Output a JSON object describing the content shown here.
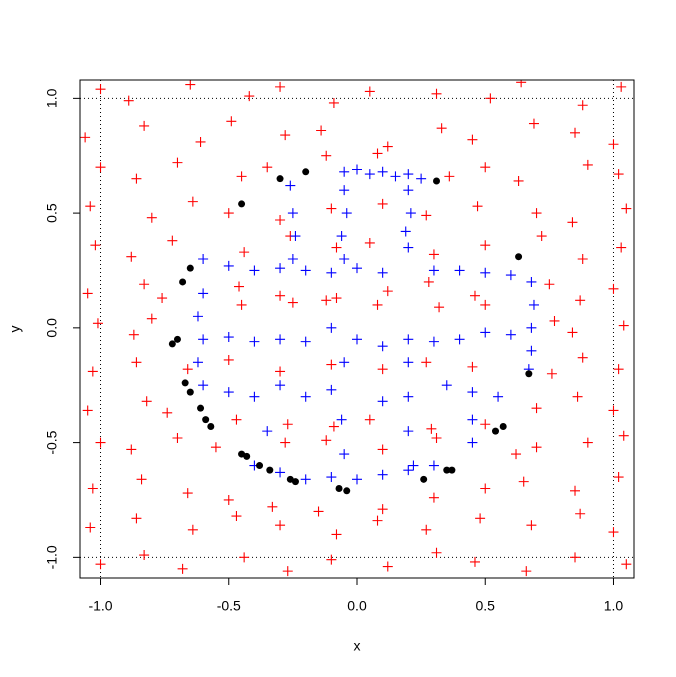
{
  "chart_data": {
    "type": "scatter",
    "x_label": "x",
    "y_label": "y",
    "xlim": [
      -1.08,
      1.08
    ],
    "ylim": [
      -1.09,
      1.08
    ],
    "xticks": [
      {
        "value": -1,
        "label": "-1.0"
      },
      -0.5,
      {
        "value": 0,
        "label": "0.0"
      },
      0.5,
      {
        "value": 1,
        "label": "1.0"
      }
    ],
    "yticks": [
      {
        "value": -1,
        "label": "-1.0"
      },
      -0.5,
      {
        "value": 0,
        "label": "0.0"
      },
      0.5,
      {
        "value": 1,
        "label": "1.0"
      }
    ],
    "hlines": [
      -1,
      1
    ],
    "vlines": [
      -1,
      1
    ],
    "series": [
      {
        "color": "#ff0000",
        "marker": "plus",
        "x": [
          -1.0,
          -0.89,
          -0.65,
          -0.42,
          -0.3,
          -0.09,
          0.05,
          0.31,
          0.52,
          0.64,
          0.88,
          1.03,
          -1.06,
          -0.83,
          -0.61,
          -0.49,
          -0.28,
          -0.14,
          0.12,
          0.33,
          0.45,
          0.69,
          0.85,
          1.0,
          -1.0,
          -0.86,
          -0.7,
          -0.45,
          -0.35,
          -0.12,
          0.08,
          0.36,
          0.5,
          0.63,
          0.9,
          1.02,
          -1.04,
          -0.8,
          -0.64,
          -0.5,
          -0.3,
          -0.1,
          0.1,
          0.27,
          0.47,
          0.7,
          0.84,
          1.05,
          -1.02,
          -0.88,
          -0.72,
          -0.44,
          -0.26,
          -0.08,
          0.05,
          0.3,
          0.5,
          0.72,
          0.88,
          1.03,
          -1.05,
          -0.83,
          -0.76,
          -0.46,
          -0.3,
          -0.12,
          0.12,
          0.28,
          0.46,
          0.75,
          0.87,
          1.0,
          -1.01,
          -0.87,
          -0.8,
          -0.45,
          -0.25,
          -0.08,
          0.08,
          0.32,
          0.5,
          0.77,
          0.84,
          1.04,
          -1.03,
          -0.86,
          -0.66,
          -0.5,
          -0.3,
          -0.1,
          0.1,
          0.27,
          0.45,
          0.76,
          0.88,
          1.02,
          -1.05,
          -0.82,
          -0.74,
          -0.47,
          -0.27,
          -0.09,
          0.05,
          0.29,
          0.5,
          0.7,
          0.86,
          1.0,
          -1.0,
          -0.88,
          -0.7,
          -0.55,
          -0.28,
          -0.12,
          0.1,
          0.31,
          0.62,
          0.7,
          0.9,
          1.04,
          -1.03,
          -0.84,
          -0.66,
          -0.5,
          -0.33,
          -0.15,
          0.1,
          0.3,
          0.5,
          0.65,
          0.85,
          1.02,
          -1.04,
          -0.86,
          -0.64,
          -0.47,
          -0.3,
          -0.08,
          0.08,
          0.27,
          0.48,
          0.68,
          0.87,
          1.0,
          -1.0,
          -0.83,
          -0.68,
          -0.44,
          -0.27,
          -0.1,
          0.12,
          0.31,
          0.46,
          0.66,
          0.85,
          1.05
        ],
        "y": [
          1.04,
          0.99,
          1.06,
          1.01,
          1.05,
          0.98,
          1.03,
          1.02,
          1.0,
          1.07,
          0.97,
          1.05,
          0.83,
          0.88,
          0.81,
          0.9,
          0.84,
          0.86,
          0.79,
          0.87,
          0.82,
          0.89,
          0.85,
          0.8,
          0.7,
          0.65,
          0.72,
          0.66,
          0.7,
          0.75,
          0.76,
          0.66,
          0.7,
          0.64,
          0.71,
          0.67,
          0.53,
          0.48,
          0.55,
          0.5,
          0.47,
          0.52,
          0.54,
          0.49,
          0.53,
          0.5,
          0.46,
          0.52,
          0.36,
          0.31,
          0.38,
          0.33,
          0.4,
          0.35,
          0.37,
          0.32,
          0.36,
          0.4,
          0.3,
          0.35,
          0.15,
          0.19,
          0.13,
          0.18,
          0.14,
          0.12,
          0.16,
          0.2,
          0.14,
          0.19,
          0.12,
          0.17,
          0.02,
          -0.03,
          0.04,
          0.1,
          0.11,
          0.13,
          0.1,
          0.09,
          0.1,
          0.03,
          -0.02,
          0.01,
          -0.19,
          -0.15,
          -0.18,
          -0.14,
          -0.19,
          -0.16,
          -0.18,
          -0.15,
          -0.17,
          -0.2,
          -0.13,
          -0.18,
          -0.36,
          -0.32,
          -0.37,
          -0.4,
          -0.42,
          -0.43,
          -0.4,
          -0.44,
          -0.42,
          -0.35,
          -0.3,
          -0.36,
          -0.5,
          -0.53,
          -0.48,
          -0.52,
          -0.5,
          -0.49,
          -0.53,
          -0.48,
          -0.55,
          -0.52,
          -0.5,
          -0.47,
          -0.7,
          -0.66,
          -0.72,
          -0.75,
          -0.78,
          -0.8,
          -0.79,
          -0.74,
          -0.7,
          -0.67,
          -0.71,
          -0.65,
          -0.87,
          -0.83,
          -0.88,
          -0.82,
          -0.86,
          -0.9,
          -0.84,
          -0.88,
          -0.83,
          -0.86,
          -0.81,
          -0.89,
          -1.03,
          -0.99,
          -1.05,
          -1.0,
          -1.06,
          -1.01,
          -1.04,
          -0.98,
          -1.02,
          -1.06,
          -1.0,
          -1.03
        ]
      },
      {
        "color": "#0000ff",
        "marker": "plus",
        "x": [
          -0.05,
          0.0,
          0.05,
          0.1,
          0.15,
          0.2,
          0.25,
          -0.05,
          -0.04,
          -0.06,
          -0.05,
          0.2,
          0.21,
          0.19,
          0.2,
          -0.26,
          -0.25,
          -0.24,
          -0.25,
          -0.6,
          -0.5,
          -0.4,
          -0.3,
          -0.2,
          -0.1,
          0.0,
          0.1,
          0.3,
          0.4,
          0.5,
          0.6,
          0.68,
          0.69,
          0.68,
          0.68,
          0.67,
          -0.6,
          -0.5,
          -0.4,
          -0.3,
          -0.2,
          -0.1,
          0.0,
          0.1,
          0.2,
          0.3,
          0.4,
          0.5,
          0.6,
          -0.6,
          -0.62,
          -0.62,
          -0.6,
          -0.5,
          -0.4,
          -0.3,
          -0.2,
          -0.1,
          0.1,
          0.2,
          0.35,
          0.45,
          0.55,
          -0.05,
          -0.06,
          -0.05,
          0.2,
          0.2,
          0.22,
          0.45,
          -0.35,
          -0.4,
          -0.3,
          -0.2,
          -0.1,
          0.0,
          0.1,
          0.2,
          0.3,
          0.45
        ],
        "y": [
          0.68,
          0.69,
          0.67,
          0.68,
          0.66,
          0.67,
          0.65,
          0.6,
          0.5,
          0.4,
          0.3,
          0.6,
          0.5,
          0.42,
          0.35,
          0.62,
          0.5,
          0.4,
          0.3,
          0.3,
          0.27,
          0.25,
          0.26,
          0.25,
          0.24,
          0.26,
          0.24,
          0.25,
          0.25,
          0.24,
          0.23,
          0.2,
          0.1,
          0.0,
          -0.1,
          -0.18,
          -0.05,
          -0.04,
          -0.06,
          -0.05,
          -0.06,
          0.0,
          -0.05,
          -0.08,
          -0.05,
          -0.06,
          -0.05,
          -0.02,
          -0.03,
          0.15,
          0.05,
          -0.15,
          -0.25,
          -0.28,
          -0.3,
          -0.25,
          -0.3,
          -0.27,
          -0.32,
          -0.3,
          -0.25,
          -0.28,
          -0.3,
          -0.15,
          -0.4,
          -0.55,
          -0.15,
          -0.45,
          -0.6,
          -0.4,
          -0.45,
          -0.6,
          -0.63,
          -0.66,
          -0.65,
          -0.66,
          -0.64,
          -0.62,
          -0.6,
          -0.5
        ]
      },
      {
        "color": "#000000",
        "marker": "dot",
        "x": [
          -0.3,
          -0.2,
          0.31,
          -0.45,
          -0.65,
          -0.68,
          0.63,
          -0.7,
          -0.72,
          0.67,
          -0.67,
          -0.65,
          -0.61,
          -0.59,
          -0.57,
          -0.45,
          -0.43,
          -0.38,
          -0.34,
          -0.26,
          -0.24,
          -0.07,
          -0.04,
          0.26,
          0.35,
          0.37,
          0.54,
          0.57
        ],
        "y": [
          0.65,
          0.68,
          0.64,
          0.54,
          0.26,
          0.2,
          0.31,
          -0.05,
          -0.07,
          -0.2,
          -0.24,
          -0.28,
          -0.35,
          -0.4,
          -0.43,
          -0.55,
          -0.56,
          -0.6,
          -0.62,
          -0.66,
          -0.67,
          -0.7,
          -0.71,
          -0.66,
          -0.62,
          -0.62,
          -0.45,
          -0.43
        ]
      }
    ]
  }
}
